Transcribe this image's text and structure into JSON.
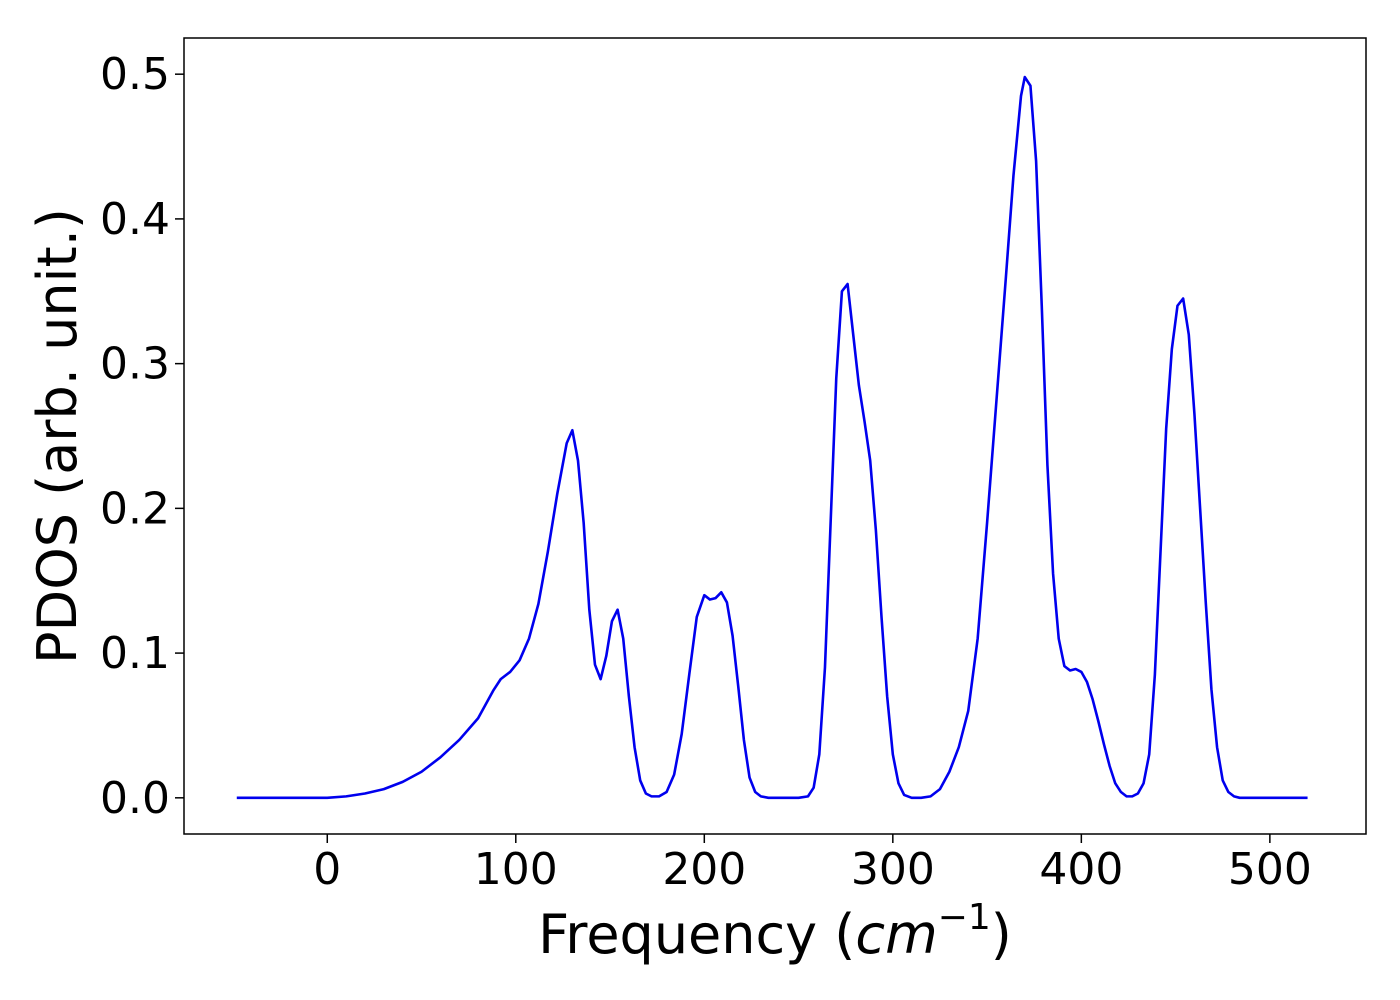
{
  "chart_data": {
    "type": "line",
    "xlabel": "Frequency (",
    "xlabel_unit": "cm",
    "xlabel_exp": "−1",
    "xlabel_close": ")",
    "ylabel": "PDOS (arb. unit.)",
    "xlim": [
      -76,
      551
    ],
    "ylim": [
      -0.025,
      0.525
    ],
    "xticks": [
      0,
      100,
      200,
      300,
      400,
      500
    ],
    "xtick_labels": [
      "0",
      "100",
      "200",
      "300",
      "400",
      "500"
    ],
    "yticks": [
      0.0,
      0.1,
      0.2,
      0.3,
      0.4,
      0.5
    ],
    "ytick_labels": [
      "0.0",
      "0.1",
      "0.2",
      "0.3",
      "0.4",
      "0.5"
    ],
    "grid": false,
    "colors": {
      "line": "#0000ee",
      "axes": "#000000",
      "background": "#ffffff"
    },
    "series": [
      {
        "x": [
          -48,
          -20,
          0,
          10,
          20,
          30,
          40,
          50,
          60,
          70,
          80,
          88,
          92,
          97,
          102,
          107,
          112,
          117,
          122,
          127,
          130,
          133,
          136,
          139,
          142,
          145,
          148,
          151,
          154,
          157,
          160,
          163,
          166,
          169,
          172,
          176,
          180,
          184,
          188,
          192,
          196,
          200,
          203,
          206,
          209,
          212,
          215,
          218,
          221,
          224,
          227,
          230,
          234,
          240,
          250,
          255,
          258,
          261,
          264,
          267,
          270,
          273,
          276,
          279,
          282,
          285,
          288,
          291,
          294,
          297,
          300,
          303,
          306,
          310,
          315,
          320,
          325,
          330,
          335,
          340,
          345,
          350,
          355,
          360,
          364,
          368,
          370,
          373,
          376,
          379,
          382,
          385,
          388,
          391,
          394,
          397,
          400,
          403,
          406,
          409,
          412,
          415,
          418,
          421,
          424,
          427,
          430,
          433,
          436,
          439,
          442,
          445,
          448,
          451,
          454,
          457,
          460,
          463,
          466,
          469,
          472,
          475,
          478,
          481,
          484,
          490,
          500,
          520
        ],
        "y": [
          0.0,
          0.0,
          0.0,
          0.001,
          0.003,
          0.006,
          0.011,
          0.018,
          0.028,
          0.04,
          0.055,
          0.074,
          0.082,
          0.087,
          0.095,
          0.11,
          0.134,
          0.17,
          0.21,
          0.245,
          0.254,
          0.233,
          0.19,
          0.13,
          0.092,
          0.082,
          0.098,
          0.122,
          0.13,
          0.11,
          0.07,
          0.035,
          0.012,
          0.003,
          0.001,
          0.001,
          0.004,
          0.016,
          0.044,
          0.085,
          0.125,
          0.14,
          0.137,
          0.138,
          0.142,
          0.135,
          0.112,
          0.077,
          0.04,
          0.014,
          0.004,
          0.001,
          0.0,
          0.0,
          0.0,
          0.001,
          0.007,
          0.03,
          0.09,
          0.19,
          0.29,
          0.35,
          0.355,
          0.32,
          0.285,
          0.26,
          0.233,
          0.185,
          0.125,
          0.07,
          0.03,
          0.01,
          0.002,
          0.0,
          0.0,
          0.001,
          0.006,
          0.018,
          0.035,
          0.06,
          0.11,
          0.19,
          0.275,
          0.36,
          0.43,
          0.485,
          0.498,
          0.492,
          0.44,
          0.34,
          0.23,
          0.155,
          0.11,
          0.091,
          0.088,
          0.089,
          0.087,
          0.08,
          0.068,
          0.053,
          0.037,
          0.022,
          0.01,
          0.004,
          0.001,
          0.001,
          0.003,
          0.01,
          0.03,
          0.085,
          0.17,
          0.255,
          0.31,
          0.34,
          0.345,
          0.32,
          0.265,
          0.2,
          0.135,
          0.075,
          0.035,
          0.012,
          0.004,
          0.001,
          0.0,
          0.0,
          0.0,
          0.0
        ]
      }
    ]
  }
}
